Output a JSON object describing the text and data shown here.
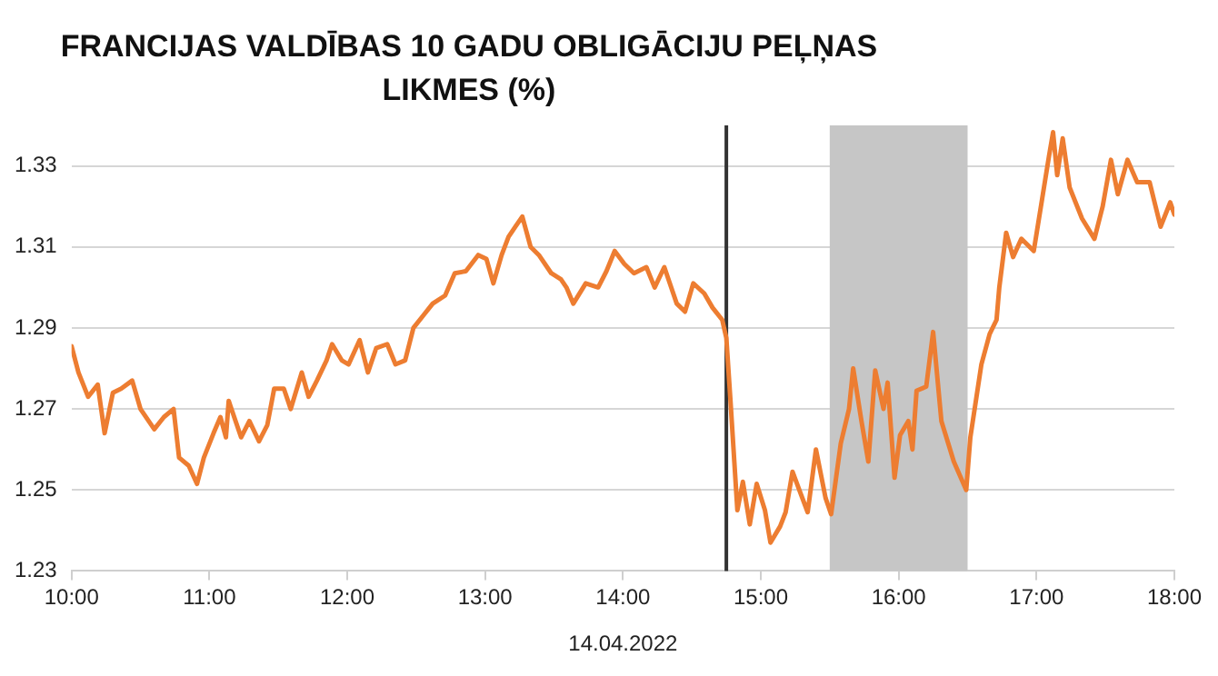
{
  "chart_data": {
    "type": "line",
    "title": "FRANCIJAS VALDĪBAS 10 GADU OBLIGĀCIJU PEĻŅAS LIKMES (%)",
    "xlabel": "14.04.2022",
    "series": [
      {
        "color": "#ed7d31",
        "x": [
          10.0,
          10.05,
          10.12,
          10.19,
          10.24,
          10.3,
          10.36,
          10.44,
          10.5,
          10.6,
          10.67,
          10.74,
          10.78,
          10.85,
          10.91,
          10.96,
          11.03,
          11.08,
          11.12,
          11.14,
          11.23,
          11.29,
          11.36,
          11.42,
          11.47,
          11.54,
          11.59,
          11.67,
          11.72,
          11.78,
          11.85,
          11.89,
          11.96,
          12.01,
          12.09,
          12.15,
          12.21,
          12.29,
          12.35,
          12.42,
          12.48,
          12.55,
          12.62,
          12.71,
          12.78,
          12.86,
          12.95,
          13.01,
          13.06,
          13.12,
          13.17,
          13.22,
          13.27,
          13.33,
          13.39,
          13.48,
          13.55,
          13.59,
          13.64,
          13.73,
          13.82,
          13.88,
          13.94,
          14.01,
          14.08,
          14.17,
          14.23,
          14.3,
          14.39,
          14.45,
          14.51,
          14.59,
          14.65,
          14.72,
          14.75,
          14.78,
          14.83,
          14.87,
          14.92,
          14.97,
          15.03,
          15.07,
          15.14,
          15.18,
          15.23,
          15.29,
          15.34,
          15.4,
          15.47,
          15.51,
          15.58,
          15.64,
          15.67,
          15.73,
          15.78,
          15.83,
          15.89,
          15.92,
          15.97,
          16.01,
          16.07,
          16.1,
          16.13,
          16.2,
          16.25,
          16.31,
          16.4,
          16.49,
          16.52,
          16.6,
          16.66,
          16.71,
          16.73,
          16.78,
          16.83,
          16.89,
          16.98,
          17.04,
          17.09,
          17.12,
          17.15,
          17.19,
          17.24,
          17.33,
          17.42,
          17.48,
          17.54,
          17.59,
          17.66,
          17.73,
          17.82,
          17.9,
          17.97,
          18.0
        ],
        "values": [
          1.2855,
          1.279,
          1.273,
          1.276,
          1.264,
          1.274,
          1.275,
          1.277,
          1.27,
          1.265,
          1.268,
          1.27,
          1.258,
          1.256,
          1.2515,
          1.258,
          1.264,
          1.268,
          1.263,
          1.272,
          1.263,
          1.267,
          1.262,
          1.266,
          1.275,
          1.275,
          1.27,
          1.279,
          1.273,
          1.277,
          1.282,
          1.286,
          1.282,
          1.281,
          1.287,
          1.279,
          1.285,
          1.286,
          1.281,
          1.282,
          1.29,
          1.293,
          1.296,
          1.298,
          1.3035,
          1.304,
          1.308,
          1.307,
          1.301,
          1.308,
          1.3125,
          1.315,
          1.3175,
          1.31,
          1.308,
          1.3035,
          1.302,
          1.3,
          1.296,
          1.301,
          1.3,
          1.304,
          1.309,
          1.3058,
          1.3035,
          1.305,
          1.3,
          1.305,
          1.296,
          1.294,
          1.301,
          1.2985,
          1.295,
          1.292,
          1.2875,
          1.272,
          1.245,
          1.252,
          1.2415,
          1.2515,
          1.245,
          1.237,
          1.241,
          1.2445,
          1.2545,
          1.249,
          1.2445,
          1.26,
          1.248,
          1.244,
          1.2615,
          1.27,
          1.28,
          1.267,
          1.257,
          1.2795,
          1.27,
          1.2765,
          1.253,
          1.2635,
          1.267,
          1.26,
          1.2745,
          1.2755,
          1.289,
          1.267,
          1.257,
          1.25,
          1.263,
          1.281,
          1.2885,
          1.292,
          1.3,
          1.3135,
          1.3075,
          1.312,
          1.309,
          1.3217,
          1.3323,
          1.3383,
          1.3277,
          1.3368,
          1.3247,
          1.317,
          1.312,
          1.32,
          1.3315,
          1.323,
          1.3315,
          1.326,
          1.326,
          1.315,
          1.321,
          1.318
        ]
      }
    ],
    "xlim": [
      10,
      18
    ],
    "xticks": [
      {
        "value": 10,
        "label": "10:00"
      },
      {
        "value": 11,
        "label": "11:00"
      },
      {
        "value": 12,
        "label": "12:00"
      },
      {
        "value": 13,
        "label": "13:00"
      },
      {
        "value": 14,
        "label": "14:00"
      },
      {
        "value": 15,
        "label": "15:00"
      },
      {
        "value": 16,
        "label": "16:00"
      },
      {
        "value": 17,
        "label": "17:00"
      },
      {
        "value": 18,
        "label": "18:00"
      }
    ],
    "ylim": [
      1.23,
      1.34
    ],
    "yticks": [
      1.23,
      1.25,
      1.27,
      1.29,
      1.31,
      1.33
    ],
    "grid": "y",
    "legend": false,
    "marker": "none",
    "line_style": "solid",
    "ref_lines": [
      {
        "axis": "x",
        "value": 14.75,
        "color": "#333333"
      }
    ],
    "bands": [
      {
        "axis": "x",
        "from": 15.5,
        "to": 16.5,
        "color": "#c6c6c6"
      }
    ]
  }
}
